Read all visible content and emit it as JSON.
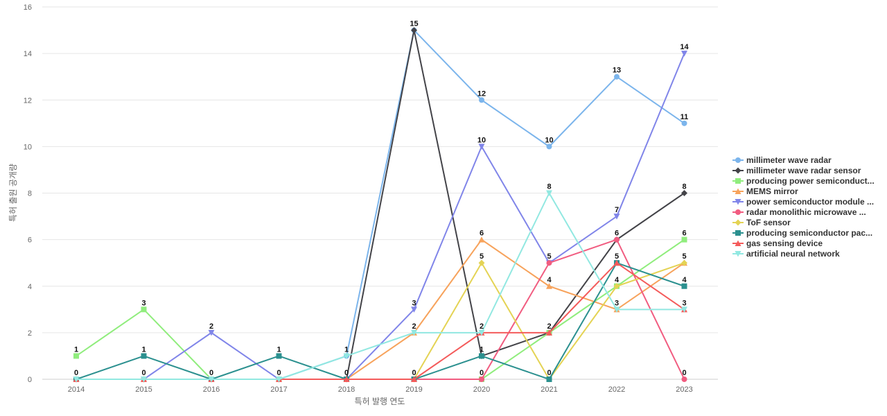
{
  "chart_data": {
    "type": "line",
    "title": "",
    "xlabel": "특허 발행 연도",
    "ylabel": "특허 출원 공개량",
    "x": [
      "2014",
      "2015",
      "2016",
      "2017",
      "2018",
      "2019",
      "2020",
      "2021",
      "2022",
      "2023"
    ],
    "ylim": [
      0,
      16
    ],
    "yticks": [
      0,
      2,
      4,
      6,
      8,
      10,
      12,
      14,
      16
    ],
    "grid": true,
    "legend_position": "right",
    "series": [
      {
        "name": "millimeter wave radar",
        "color": "#7cb5ec",
        "marker": "circle",
        "values": [
          0,
          0,
          0,
          0,
          1,
          15,
          12,
          10,
          13,
          11
        ]
      },
      {
        "name": "millimeter wave radar sensor",
        "color": "#434348",
        "marker": "diamond",
        "values": [
          0,
          0,
          0,
          0,
          0,
          15,
          1,
          2,
          6,
          8
        ]
      },
      {
        "name": "producing power semiconduct...",
        "color": "#90ed7d",
        "marker": "square",
        "values": [
          1,
          3,
          0,
          0,
          0,
          0,
          0,
          2,
          4,
          6
        ]
      },
      {
        "name": "MEMS mirror",
        "color": "#f7a35c",
        "marker": "triangle",
        "values": [
          0,
          0,
          0,
          0,
          0,
          2,
          6,
          4,
          3,
          5
        ]
      },
      {
        "name": "power semiconductor module ...",
        "color": "#8085e9",
        "marker": "triangle-down",
        "values": [
          0,
          0,
          2,
          0,
          0,
          3,
          10,
          5,
          7,
          14
        ]
      },
      {
        "name": "radar monolithic microwave ...",
        "color": "#f15c80",
        "marker": "circle",
        "values": [
          0,
          0,
          0,
          0,
          0,
          0,
          0,
          5,
          6,
          0
        ]
      },
      {
        "name": "ToF sensor",
        "color": "#e4d354",
        "marker": "diamond",
        "values": [
          0,
          0,
          0,
          0,
          0,
          0,
          5,
          0,
          4,
          5
        ]
      },
      {
        "name": "producing semiconductor pac...",
        "color": "#2b908f",
        "marker": "square",
        "values": [
          0,
          1,
          0,
          1,
          0,
          0,
          1,
          0,
          5,
          4
        ]
      },
      {
        "name": "gas sensing device",
        "color": "#f45b5b",
        "marker": "triangle",
        "values": [
          0,
          0,
          0,
          0,
          0,
          0,
          2,
          2,
          5,
          3
        ]
      },
      {
        "name": "artificial neural network",
        "color": "#91e8e1",
        "marker": "triangle-down",
        "values": [
          0,
          0,
          0,
          0,
          1,
          2,
          2,
          8,
          3,
          3
        ]
      }
    ],
    "data_labels": [
      {
        "x": "2014",
        "y": 1,
        "text": "1"
      },
      {
        "x": "2014",
        "y": 0,
        "text": "0"
      },
      {
        "x": "2015",
        "y": 3,
        "text": "3"
      },
      {
        "x": "2015",
        "y": 1,
        "text": "1"
      },
      {
        "x": "2015",
        "y": 0,
        "text": "0"
      },
      {
        "x": "2016",
        "y": 2,
        "text": "2"
      },
      {
        "x": "2016",
        "y": 0,
        "text": "0"
      },
      {
        "x": "2017",
        "y": 1,
        "text": "1"
      },
      {
        "x": "2017",
        "y": 0,
        "text": "0"
      },
      {
        "x": "2018",
        "y": 1,
        "text": "1"
      },
      {
        "x": "2018",
        "y": 0,
        "text": "0"
      },
      {
        "x": "2019",
        "y": 15,
        "text": "15"
      },
      {
        "x": "2019",
        "y": 3,
        "text": "3"
      },
      {
        "x": "2019",
        "y": 2,
        "text": "2"
      },
      {
        "x": "2019",
        "y": 0,
        "text": "0"
      },
      {
        "x": "2020",
        "y": 12,
        "text": "12"
      },
      {
        "x": "2020",
        "y": 10,
        "text": "10"
      },
      {
        "x": "2020",
        "y": 6,
        "text": "6"
      },
      {
        "x": "2020",
        "y": 5,
        "text": "5"
      },
      {
        "x": "2020",
        "y": 2,
        "text": "2"
      },
      {
        "x": "2020",
        "y": 1,
        "text": "1"
      },
      {
        "x": "2020",
        "y": 0,
        "text": "0"
      },
      {
        "x": "2021",
        "y": 10,
        "text": "10"
      },
      {
        "x": "2021",
        "y": 8,
        "text": "8"
      },
      {
        "x": "2021",
        "y": 5,
        "text": "5"
      },
      {
        "x": "2021",
        "y": 4,
        "text": "4"
      },
      {
        "x": "2021",
        "y": 2,
        "text": "2"
      },
      {
        "x": "2021",
        "y": 0,
        "text": "0"
      },
      {
        "x": "2022",
        "y": 13,
        "text": "13"
      },
      {
        "x": "2022",
        "y": 7,
        "text": "7"
      },
      {
        "x": "2022",
        "y": 6,
        "text": "6"
      },
      {
        "x": "2022",
        "y": 5,
        "text": "5"
      },
      {
        "x": "2022",
        "y": 4,
        "text": "4"
      },
      {
        "x": "2022",
        "y": 3,
        "text": "3"
      },
      {
        "x": "2023",
        "y": 14,
        "text": "14"
      },
      {
        "x": "2023",
        "y": 11,
        "text": "11"
      },
      {
        "x": "2023",
        "y": 8,
        "text": "8"
      },
      {
        "x": "2023",
        "y": 6,
        "text": "6"
      },
      {
        "x": "2023",
        "y": 5,
        "text": "5"
      },
      {
        "x": "2023",
        "y": 4,
        "text": "4"
      },
      {
        "x": "2023",
        "y": 3,
        "text": "3"
      },
      {
        "x": "2023",
        "y": 0,
        "text": "0"
      }
    ]
  }
}
